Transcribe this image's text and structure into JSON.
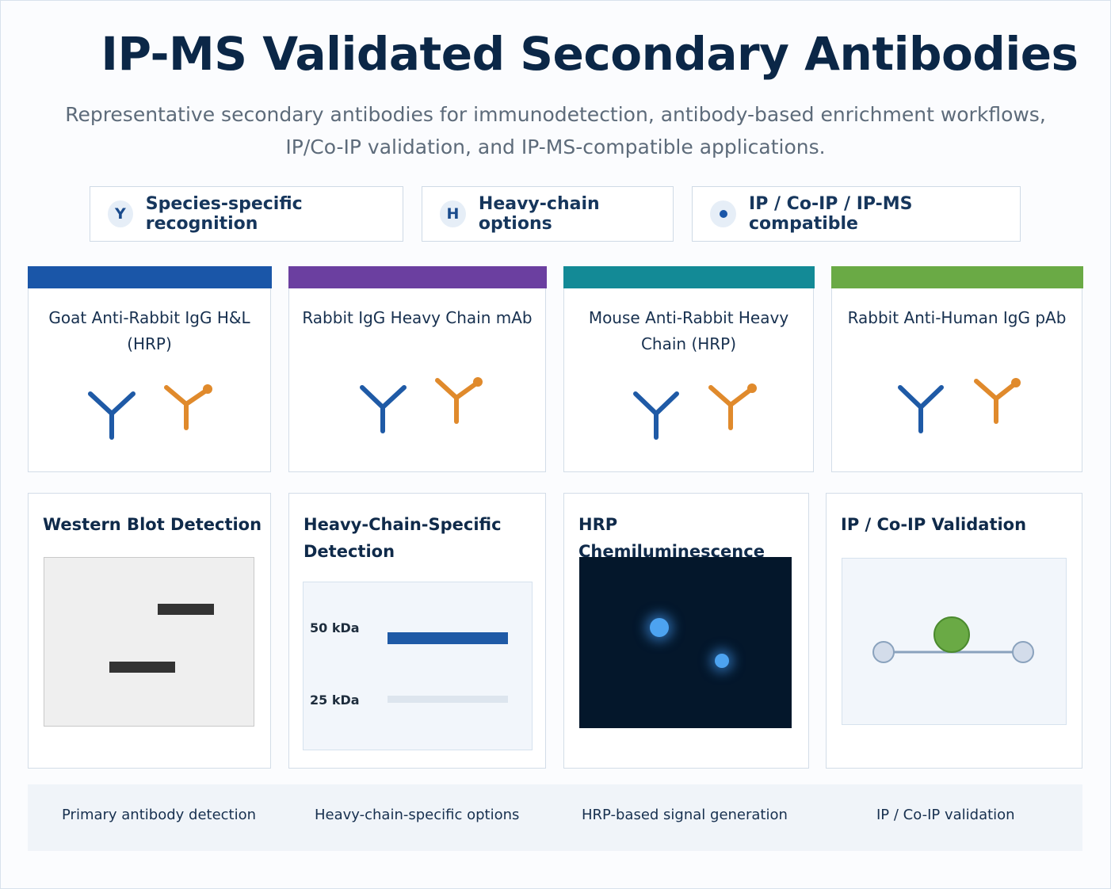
{
  "title": "IP-MS Validated Secondary Antibodies",
  "subtitle_line1": "Representative secondary antibodies for immunodetection, antibody-based enrichment workflows,",
  "subtitle_line2": "IP/Co-IP validation, and IP-MS-compatible applications.",
  "features": [
    {
      "badge": "Y",
      "label": "Species-specific recognition"
    },
    {
      "badge": "H",
      "label": "Heavy-chain options"
    },
    {
      "badge": "",
      "label": "IP / Co-IP / IP-MS compatible"
    }
  ],
  "products": [
    {
      "name": "Goat Anti-Rabbit IgG H&L (HRP)",
      "accent": "#1a56a8"
    },
    {
      "name": "Rabbit IgG Heavy Chain mAb",
      "accent": "#6b3fa0"
    },
    {
      "name": "Mouse Anti-Rabbit Heavy Chain (HRP)",
      "accent": "#138a96"
    },
    {
      "name": "Rabbit Anti-Human IgG pAb",
      "accent": "#6aaa45"
    }
  ],
  "applications": [
    {
      "title": "Western Blot Detection"
    },
    {
      "title": "Heavy-Chain-Specific Detection",
      "marker_high": "50 kDa",
      "marker_low": "25 kDa"
    },
    {
      "title": "HRP Chemiluminescence"
    },
    {
      "title": "IP / Co-IP Validation"
    }
  ],
  "footer": [
    "Primary antibody detection",
    "Heavy-chain-specific options",
    "HRP-based signal generation",
    "IP / Co-IP validation"
  ],
  "colors": {
    "antibody_blue": "#1f5aa6",
    "antibody_orange": "#e08a2c",
    "ip_bead_green": "#6aaa45"
  }
}
